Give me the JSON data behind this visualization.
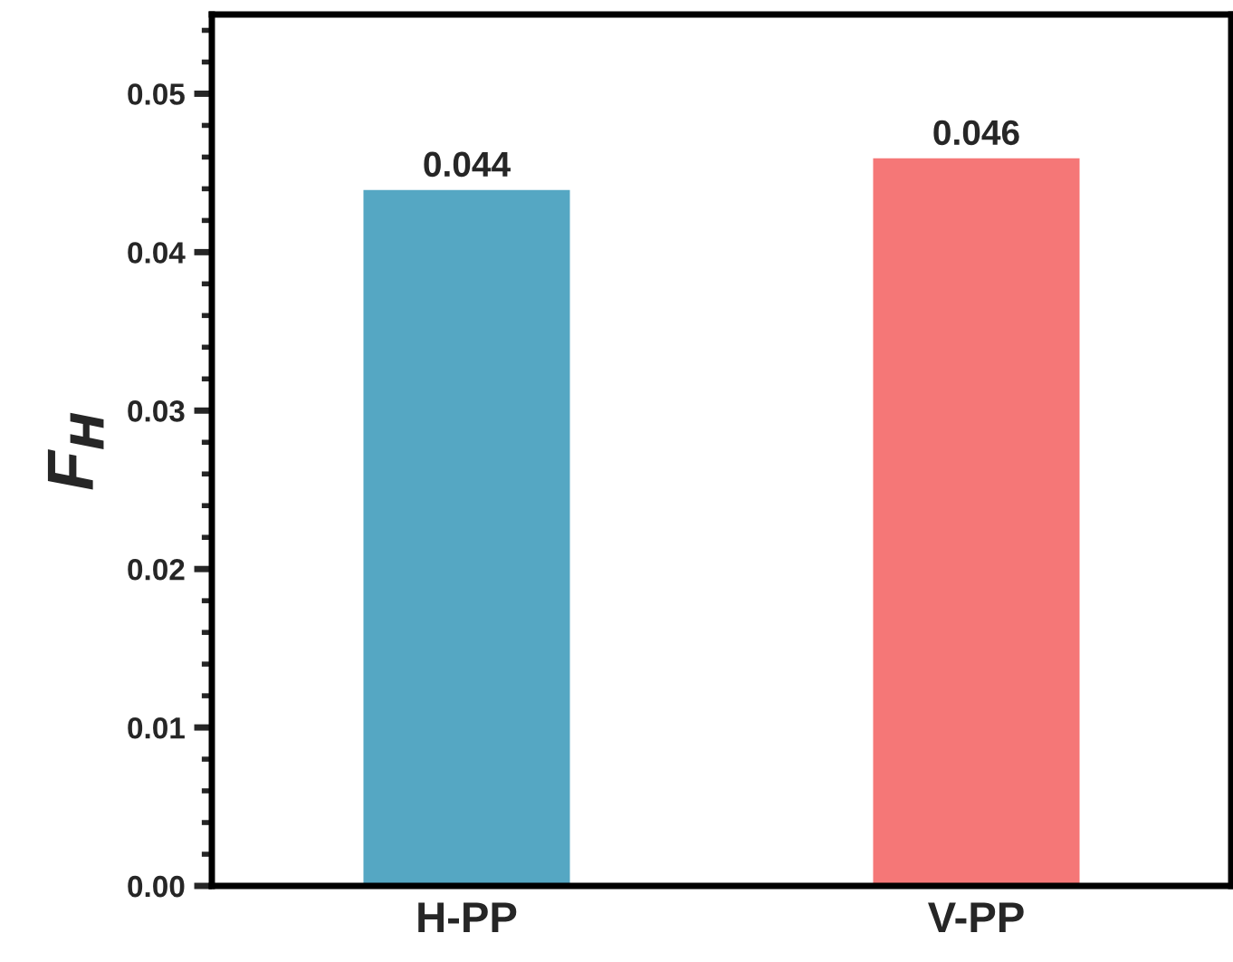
{
  "chart_data": {
    "type": "bar",
    "ylabel": "F$_{H}$",
    "categories": [
      "H-PP",
      "V-PP"
    ],
    "values": [
      0.044,
      0.046
    ],
    "colors": [
      "#55a7c3",
      "#f57777"
    ],
    "ylim": [
      0,
      0.055
    ],
    "yticks": [
      {
        "value": 0,
        "label": "0.00"
      },
      {
        "value": 0.01,
        "label": "0.01"
      },
      {
        "value": 0.02,
        "label": "0.02"
      },
      {
        "value": 0.03,
        "label": "0.03"
      },
      {
        "value": 0.04,
        "label": "0.04"
      },
      {
        "value": 0.05,
        "label": "0.05"
      }
    ],
    "data_labels": true,
    "grid": false,
    "legend": false
  }
}
